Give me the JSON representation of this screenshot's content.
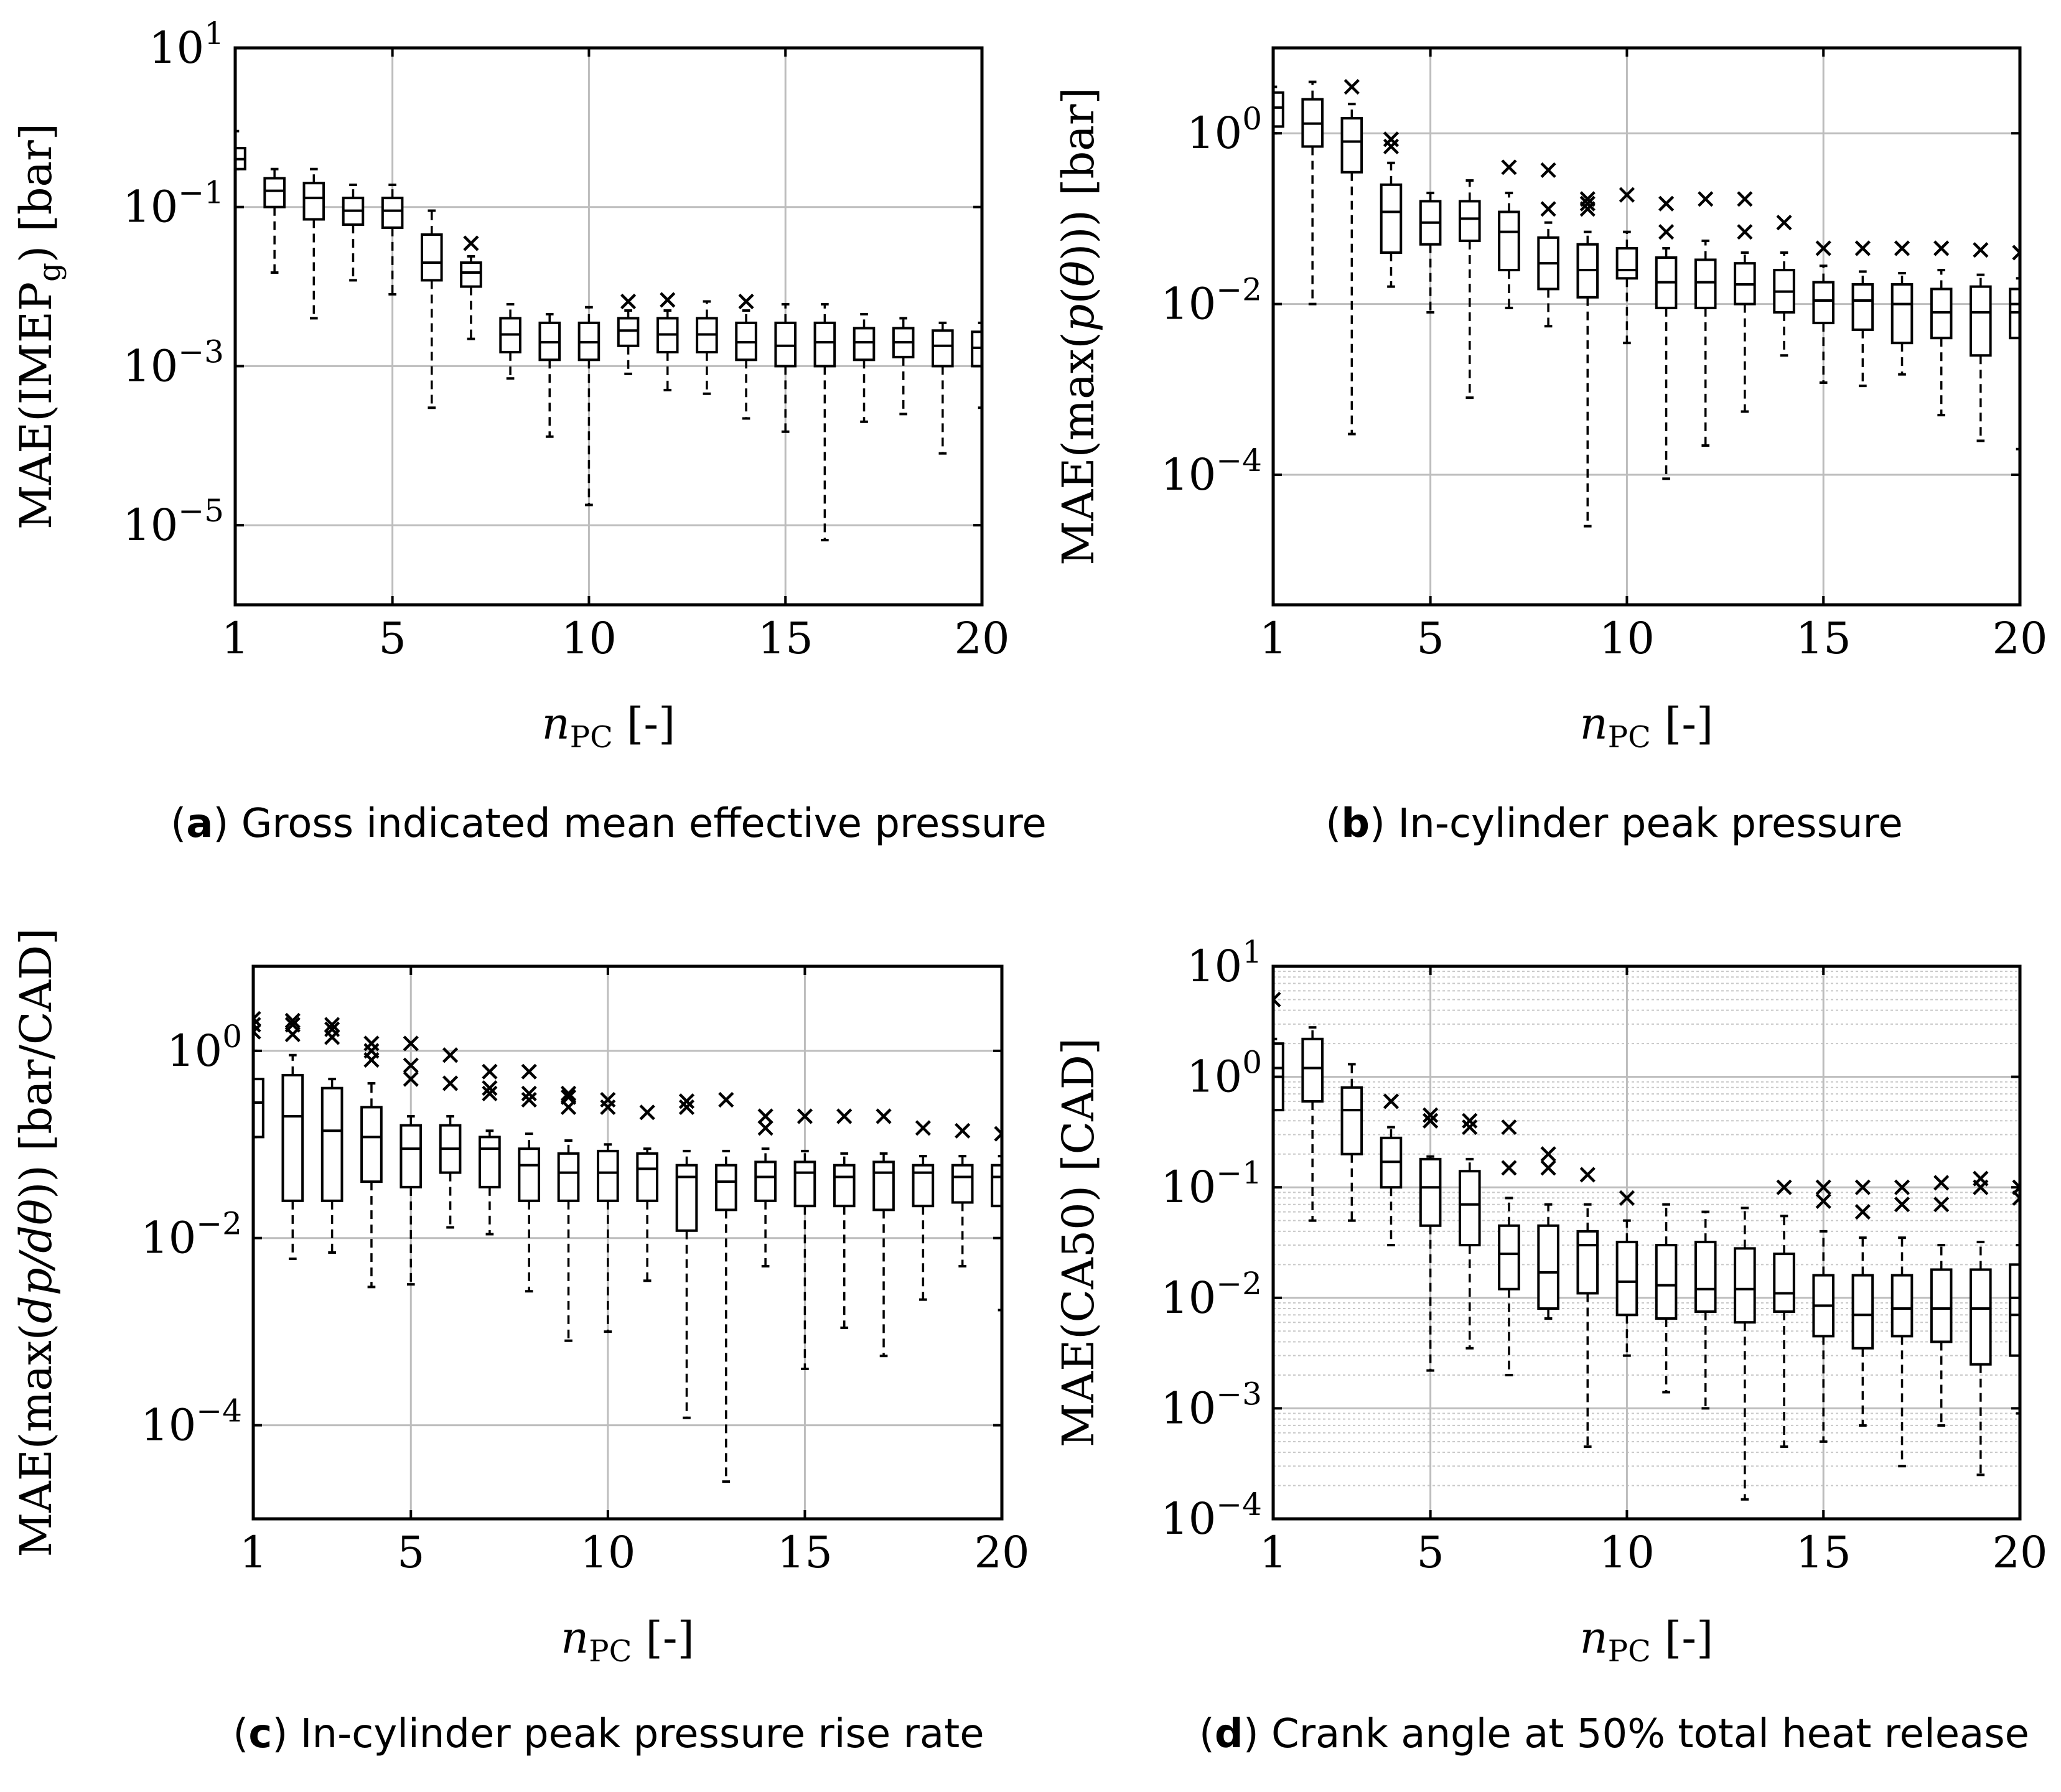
{
  "chart_data": [
    {
      "type": "box",
      "caption_letter": "a",
      "caption_text": "Gross indicated mean effective pressure",
      "xlabel": "n_PC [-]",
      "ylabel": "MAE(IMEP_g) [bar]",
      "ylog": true,
      "xlim": [
        1,
        20
      ],
      "ylim": [
        1e-06,
        10
      ],
      "x_ticks": [
        1,
        5,
        10,
        15,
        20
      ],
      "y_ticks": [
        {
          "value": 10,
          "label": "10^1"
        },
        {
          "value": 0.1,
          "label": "10^-1"
        },
        {
          "value": 0.001,
          "label": "10^-3"
        },
        {
          "value": 1e-05,
          "label": "10^-5"
        }
      ],
      "minor_grid": false,
      "boxes": [
        {
          "x": 1,
          "wlo": 0.3,
          "q1": 0.3,
          "med": 0.4,
          "q3": 0.55,
          "whi": 0.9,
          "out": []
        },
        {
          "x": 2,
          "wlo": 0.015,
          "q1": 0.1,
          "med": 0.16,
          "q3": 0.23,
          "whi": 0.3,
          "out": []
        },
        {
          "x": 3,
          "wlo": 0.004,
          "q1": 0.07,
          "med": 0.13,
          "q3": 0.2,
          "whi": 0.3,
          "out": []
        },
        {
          "x": 4,
          "wlo": 0.012,
          "q1": 0.06,
          "med": 0.09,
          "q3": 0.13,
          "whi": 0.19,
          "out": []
        },
        {
          "x": 5,
          "wlo": 0.008,
          "q1": 0.055,
          "med": 0.09,
          "q3": 0.13,
          "whi": 0.19,
          "out": []
        },
        {
          "x": 6,
          "wlo": 0.0003,
          "q1": 0.012,
          "med": 0.02,
          "q3": 0.045,
          "whi": 0.09,
          "out": []
        },
        {
          "x": 7,
          "wlo": 0.0022,
          "q1": 0.01,
          "med": 0.015,
          "q3": 0.02,
          "whi": 0.024,
          "out": [
            0.035
          ]
        },
        {
          "x": 8,
          "wlo": 0.0007,
          "q1": 0.0015,
          "med": 0.0025,
          "q3": 0.004,
          "whi": 0.006,
          "out": []
        },
        {
          "x": 9,
          "wlo": 0.00013,
          "q1": 0.0012,
          "med": 0.002,
          "q3": 0.0035,
          "whi": 0.0045,
          "out": []
        },
        {
          "x": 10,
          "wlo": 1.8e-05,
          "q1": 0.0012,
          "med": 0.002,
          "q3": 0.0035,
          "whi": 0.0055,
          "out": []
        },
        {
          "x": 11,
          "wlo": 0.0008,
          "q1": 0.0018,
          "med": 0.0028,
          "q3": 0.004,
          "whi": 0.005,
          "out": [
            0.0065
          ]
        },
        {
          "x": 12,
          "wlo": 0.0005,
          "q1": 0.0015,
          "med": 0.0025,
          "q3": 0.004,
          "whi": 0.005,
          "out": [
            0.0068
          ]
        },
        {
          "x": 13,
          "wlo": 0.00045,
          "q1": 0.0015,
          "med": 0.0025,
          "q3": 0.004,
          "whi": 0.0065,
          "out": []
        },
        {
          "x": 14,
          "wlo": 0.00022,
          "q1": 0.0012,
          "med": 0.002,
          "q3": 0.0035,
          "whi": 0.005,
          "out": [
            0.0065
          ]
        },
        {
          "x": 15,
          "wlo": 0.00015,
          "q1": 0.001,
          "med": 0.0018,
          "q3": 0.0035,
          "whi": 0.006,
          "out": []
        },
        {
          "x": 16,
          "wlo": 6.5e-06,
          "q1": 0.001,
          "med": 0.002,
          "q3": 0.0035,
          "whi": 0.006,
          "out": []
        },
        {
          "x": 17,
          "wlo": 0.0002,
          "q1": 0.0012,
          "med": 0.002,
          "q3": 0.003,
          "whi": 0.0045,
          "out": []
        },
        {
          "x": 18,
          "wlo": 0.00025,
          "q1": 0.0013,
          "med": 0.002,
          "q3": 0.003,
          "whi": 0.004,
          "out": []
        },
        {
          "x": 19,
          "wlo": 8e-05,
          "q1": 0.001,
          "med": 0.0018,
          "q3": 0.0028,
          "whi": 0.0035,
          "out": []
        },
        {
          "x": 20,
          "wlo": 0.0003,
          "q1": 0.001,
          "med": 0.0017,
          "q3": 0.0027,
          "whi": 0.0035,
          "out": []
        }
      ]
    },
    {
      "type": "box",
      "caption_letter": "b",
      "caption_text": "In-cylinder peak pressure",
      "xlabel": "n_PC [-]",
      "ylabel": "MAE(max(p(θ))) [bar]",
      "ylog": true,
      "xlim": [
        1,
        20
      ],
      "ylim": [
        3e-06,
        10
      ],
      "x_ticks": [
        1,
        5,
        10,
        15,
        20
      ],
      "y_ticks": [
        {
          "value": 1,
          "label": "10^0"
        },
        {
          "value": 0.01,
          "label": "10^-2"
        },
        {
          "value": 0.0001,
          "label": "10^-4"
        }
      ],
      "minor_grid": false,
      "boxes": [
        {
          "x": 1,
          "wlo": 1.0,
          "q1": 1.2,
          "med": 2.0,
          "q3": 3.0,
          "whi": 3.5,
          "out": []
        },
        {
          "x": 2,
          "wlo": 0.01,
          "q1": 0.7,
          "med": 1.3,
          "q3": 2.5,
          "whi": 4.0,
          "out": []
        },
        {
          "x": 3,
          "wlo": 0.0003,
          "q1": 0.35,
          "med": 0.8,
          "q3": 1.5,
          "whi": 2.2,
          "out": [
            3.5
          ]
        },
        {
          "x": 4,
          "wlo": 0.016,
          "q1": 0.04,
          "med": 0.12,
          "q3": 0.25,
          "whi": 0.45,
          "out": [
            0.7,
            0.85
          ]
        },
        {
          "x": 5,
          "wlo": 0.008,
          "q1": 0.05,
          "med": 0.09,
          "q3": 0.16,
          "whi": 0.2,
          "out": []
        },
        {
          "x": 6,
          "wlo": 0.0008,
          "q1": 0.055,
          "med": 0.1,
          "q3": 0.16,
          "whi": 0.28,
          "out": []
        },
        {
          "x": 7,
          "wlo": 0.009,
          "q1": 0.025,
          "med": 0.07,
          "q3": 0.12,
          "whi": 0.2,
          "out": [
            0.4
          ]
        },
        {
          "x": 8,
          "wlo": 0.0055,
          "q1": 0.015,
          "med": 0.03,
          "q3": 0.06,
          "whi": 0.09,
          "out": [
            0.13,
            0.37
          ]
        },
        {
          "x": 9,
          "wlo": 2.5e-05,
          "q1": 0.012,
          "med": 0.025,
          "q3": 0.05,
          "whi": 0.07,
          "out": [
            0.13,
            0.15,
            0.17
          ]
        },
        {
          "x": 10,
          "wlo": 0.0035,
          "q1": 0.02,
          "med": 0.025,
          "q3": 0.045,
          "whi": 0.07,
          "out": [
            0.19
          ]
        },
        {
          "x": 11,
          "wlo": 9e-05,
          "q1": 0.009,
          "med": 0.018,
          "q3": 0.035,
          "whi": 0.045,
          "out": [
            0.07,
            0.15
          ]
        },
        {
          "x": 12,
          "wlo": 0.00022,
          "q1": 0.009,
          "med": 0.018,
          "q3": 0.033,
          "whi": 0.055,
          "out": [
            0.17
          ]
        },
        {
          "x": 13,
          "wlo": 0.00055,
          "q1": 0.01,
          "med": 0.017,
          "q3": 0.03,
          "whi": 0.04,
          "out": [
            0.07,
            0.17
          ]
        },
        {
          "x": 14,
          "wlo": 0.0025,
          "q1": 0.008,
          "med": 0.014,
          "q3": 0.025,
          "whi": 0.04,
          "out": [
            0.09
          ]
        },
        {
          "x": 15,
          "wlo": 0.0012,
          "q1": 0.006,
          "med": 0.011,
          "q3": 0.018,
          "whi": 0.028,
          "out": [
            0.045
          ]
        },
        {
          "x": 16,
          "wlo": 0.0011,
          "q1": 0.005,
          "med": 0.011,
          "q3": 0.017,
          "whi": 0.024,
          "out": [
            0.045
          ]
        },
        {
          "x": 17,
          "wlo": 0.0015,
          "q1": 0.0035,
          "med": 0.01,
          "q3": 0.017,
          "whi": 0.023,
          "out": [
            0.045
          ]
        },
        {
          "x": 18,
          "wlo": 0.0005,
          "q1": 0.004,
          "med": 0.008,
          "q3": 0.015,
          "whi": 0.025,
          "out": [
            0.045
          ]
        },
        {
          "x": 19,
          "wlo": 0.00025,
          "q1": 0.0025,
          "med": 0.008,
          "q3": 0.016,
          "whi": 0.022,
          "out": [
            0.043
          ]
        },
        {
          "x": 20,
          "wlo": 0.0002,
          "q1": 0.004,
          "med": 0.008,
          "q3": 0.015,
          "whi": 0.02,
          "out": [
            0.04
          ]
        }
      ]
    },
    {
      "type": "box",
      "caption_letter": "c",
      "caption_text": "In-cylinder peak pressure rise rate",
      "xlabel": "n_PC [-]",
      "ylabel": "MAE(max(dp/dθ)) [bar/CAD]",
      "ylog": true,
      "xlim": [
        1,
        20
      ],
      "ylim": [
        1e-05,
        8
      ],
      "x_ticks": [
        1,
        5,
        10,
        15,
        20
      ],
      "y_ticks": [
        {
          "value": 1,
          "label": "10^0"
        },
        {
          "value": 0.01,
          "label": "10^-2"
        },
        {
          "value": 0.0001,
          "label": "10^-4"
        }
      ],
      "minor_grid": false,
      "boxes": [
        {
          "x": 1,
          "wlo": 0.12,
          "q1": 0.12,
          "med": 0.28,
          "q3": 0.5,
          "whi": 1.0,
          "out": [
            1.6,
            1.9,
            2.2
          ]
        },
        {
          "x": 2,
          "wlo": 0.006,
          "q1": 0.025,
          "med": 0.2,
          "q3": 0.55,
          "whi": 0.9,
          "out": [
            1.5,
            1.9,
            2.1
          ]
        },
        {
          "x": 3,
          "wlo": 0.007,
          "q1": 0.025,
          "med": 0.14,
          "q3": 0.4,
          "whi": 0.5,
          "out": [
            1.4,
            1.7,
            1.9
          ]
        },
        {
          "x": 4,
          "wlo": 0.003,
          "q1": 0.04,
          "med": 0.12,
          "q3": 0.25,
          "whi": 0.45,
          "out": [
            0.8,
            1.0,
            1.2
          ]
        },
        {
          "x": 5,
          "wlo": 0.0032,
          "q1": 0.035,
          "med": 0.09,
          "q3": 0.16,
          "whi": 0.2,
          "out": [
            0.5,
            0.7,
            1.2
          ]
        },
        {
          "x": 6,
          "wlo": 0.013,
          "q1": 0.05,
          "med": 0.09,
          "q3": 0.16,
          "whi": 0.2,
          "out": [
            0.45,
            0.9
          ]
        },
        {
          "x": 7,
          "wlo": 0.011,
          "q1": 0.035,
          "med": 0.09,
          "q3": 0.12,
          "whi": 0.14,
          "out": [
            0.35,
            0.4,
            0.6
          ]
        },
        {
          "x": 8,
          "wlo": 0.0027,
          "q1": 0.025,
          "med": 0.06,
          "q3": 0.09,
          "whi": 0.13,
          "out": [
            0.3,
            0.35,
            0.6
          ]
        },
        {
          "x": 9,
          "wlo": 0.0008,
          "q1": 0.025,
          "med": 0.05,
          "q3": 0.08,
          "whi": 0.11,
          "out": [
            0.25,
            0.32,
            0.35
          ]
        },
        {
          "x": 10,
          "wlo": 0.001,
          "q1": 0.025,
          "med": 0.05,
          "q3": 0.085,
          "whi": 0.1,
          "out": [
            0.25,
            0.3
          ]
        },
        {
          "x": 11,
          "wlo": 0.0035,
          "q1": 0.025,
          "med": 0.055,
          "q3": 0.08,
          "whi": 0.09,
          "out": [
            0.22
          ]
        },
        {
          "x": 12,
          "wlo": 0.00012,
          "q1": 0.012,
          "med": 0.045,
          "q3": 0.06,
          "whi": 0.085,
          "out": [
            0.25,
            0.29
          ]
        },
        {
          "x": 13,
          "wlo": 2.5e-05,
          "q1": 0.02,
          "med": 0.04,
          "q3": 0.06,
          "whi": 0.085,
          "out": [
            0.3
          ]
        },
        {
          "x": 14,
          "wlo": 0.005,
          "q1": 0.025,
          "med": 0.045,
          "q3": 0.065,
          "whi": 0.09,
          "out": [
            0.15,
            0.2
          ]
        },
        {
          "x": 15,
          "wlo": 0.0004,
          "q1": 0.022,
          "med": 0.05,
          "q3": 0.065,
          "whi": 0.085,
          "out": [
            0.2
          ]
        },
        {
          "x": 16,
          "wlo": 0.0011,
          "q1": 0.022,
          "med": 0.045,
          "q3": 0.06,
          "whi": 0.08,
          "out": [
            0.2
          ]
        },
        {
          "x": 17,
          "wlo": 0.00055,
          "q1": 0.02,
          "med": 0.05,
          "q3": 0.065,
          "whi": 0.08,
          "out": [
            0.2
          ]
        },
        {
          "x": 18,
          "wlo": 0.0022,
          "q1": 0.022,
          "med": 0.05,
          "q3": 0.06,
          "whi": 0.075,
          "out": [
            0.15
          ]
        },
        {
          "x": 19,
          "wlo": 0.005,
          "q1": 0.024,
          "med": 0.045,
          "q3": 0.06,
          "whi": 0.075,
          "out": [
            0.14
          ]
        },
        {
          "x": 20,
          "wlo": 0.0017,
          "q1": 0.022,
          "med": 0.045,
          "q3": 0.06,
          "whi": 0.075,
          "out": [
            0.13
          ]
        }
      ]
    },
    {
      "type": "box",
      "caption_letter": "d",
      "caption_text": "Crank angle at 50% total heat release",
      "xlabel": "n_PC [-]",
      "ylabel": "MAE(CA50) [CAD]",
      "ylog": true,
      "xlim": [
        1,
        20
      ],
      "ylim": [
        0.0001,
        10
      ],
      "x_ticks": [
        1,
        5,
        10,
        15,
        20
      ],
      "y_ticks": [
        {
          "value": 10,
          "label": "10^1"
        },
        {
          "value": 1,
          "label": "10^0"
        },
        {
          "value": 0.1,
          "label": "10^-1"
        },
        {
          "value": 0.01,
          "label": "10^-2"
        },
        {
          "value": 0.001,
          "label": "10^-3"
        },
        {
          "value": 0.0001,
          "label": "10^-4"
        }
      ],
      "minor_grid": true,
      "boxes": [
        {
          "x": 1,
          "wlo": 0.5,
          "q1": 0.5,
          "med": 1.2,
          "q3": 2.0,
          "whi": 2.2,
          "out": [
            5.0
          ]
        },
        {
          "x": 2,
          "wlo": 0.05,
          "q1": 0.6,
          "med": 1.2,
          "q3": 2.2,
          "whi": 2.8,
          "out": []
        },
        {
          "x": 3,
          "wlo": 0.05,
          "q1": 0.2,
          "med": 0.5,
          "q3": 0.8,
          "whi": 1.3,
          "out": []
        },
        {
          "x": 4,
          "wlo": 0.03,
          "q1": 0.1,
          "med": 0.17,
          "q3": 0.28,
          "whi": 0.35,
          "out": [
            0.6
          ]
        },
        {
          "x": 5,
          "wlo": 0.0022,
          "q1": 0.045,
          "med": 0.1,
          "q3": 0.18,
          "whi": 0.19,
          "out": [
            0.4,
            0.45
          ]
        },
        {
          "x": 6,
          "wlo": 0.0035,
          "q1": 0.03,
          "med": 0.07,
          "q3": 0.14,
          "whi": 0.18,
          "out": [
            0.35,
            0.4
          ]
        },
        {
          "x": 7,
          "wlo": 0.002,
          "q1": 0.012,
          "med": 0.025,
          "q3": 0.045,
          "whi": 0.08,
          "out": [
            0.15,
            0.35
          ]
        },
        {
          "x": 8,
          "wlo": 0.0065,
          "q1": 0.008,
          "med": 0.017,
          "q3": 0.045,
          "whi": 0.07,
          "out": [
            0.15,
            0.2
          ]
        },
        {
          "x": 9,
          "wlo": 0.00045,
          "q1": 0.011,
          "med": 0.03,
          "q3": 0.04,
          "whi": 0.07,
          "out": [
            0.13
          ]
        },
        {
          "x": 10,
          "wlo": 0.003,
          "q1": 0.007,
          "med": 0.014,
          "q3": 0.032,
          "whi": 0.05,
          "out": [
            0.08
          ]
        },
        {
          "x": 11,
          "wlo": 0.0014,
          "q1": 0.0065,
          "med": 0.013,
          "q3": 0.03,
          "whi": 0.07,
          "out": []
        },
        {
          "x": 12,
          "wlo": 0.001,
          "q1": 0.0075,
          "med": 0.012,
          "q3": 0.032,
          "whi": 0.06,
          "out": []
        },
        {
          "x": 13,
          "wlo": 0.00015,
          "q1": 0.006,
          "med": 0.012,
          "q3": 0.028,
          "whi": 0.065,
          "out": []
        },
        {
          "x": 14,
          "wlo": 0.00045,
          "q1": 0.0075,
          "med": 0.011,
          "q3": 0.025,
          "whi": 0.055,
          "out": [
            0.1
          ]
        },
        {
          "x": 15,
          "wlo": 0.0005,
          "q1": 0.0045,
          "med": 0.0085,
          "q3": 0.016,
          "whi": 0.04,
          "out": [
            0.075,
            0.1
          ]
        },
        {
          "x": 16,
          "wlo": 0.0007,
          "q1": 0.0035,
          "med": 0.007,
          "q3": 0.016,
          "whi": 0.035,
          "out": [
            0.06,
            0.1
          ]
        },
        {
          "x": 17,
          "wlo": 0.0003,
          "q1": 0.0045,
          "med": 0.008,
          "q3": 0.016,
          "whi": 0.035,
          "out": [
            0.07,
            0.1
          ]
        },
        {
          "x": 18,
          "wlo": 0.0007,
          "q1": 0.004,
          "med": 0.008,
          "q3": 0.018,
          "whi": 0.03,
          "out": [
            0.07,
            0.11
          ]
        },
        {
          "x": 19,
          "wlo": 0.00025,
          "q1": 0.0025,
          "med": 0.008,
          "q3": 0.018,
          "whi": 0.032,
          "out": [
            0.1,
            0.12
          ]
        },
        {
          "x": 20,
          "wlo": 0.0009,
          "q1": 0.003,
          "med": 0.007,
          "q3": 0.02,
          "whi": 0.03,
          "out": [
            0.08,
            0.1
          ]
        }
      ]
    }
  ]
}
